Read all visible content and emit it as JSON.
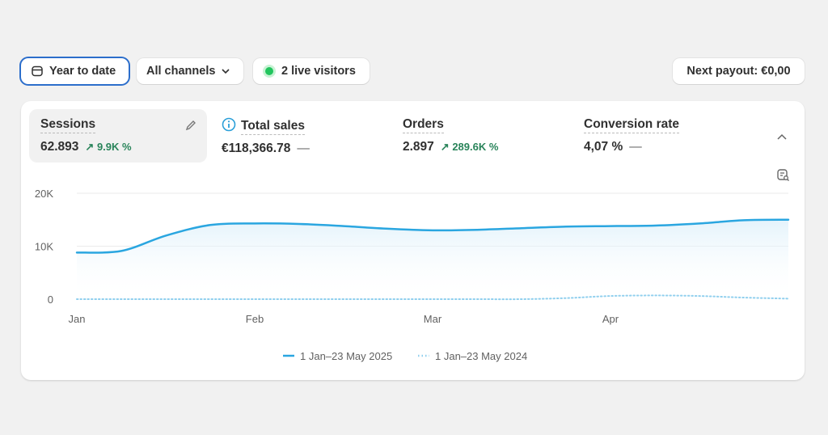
{
  "toolbar": {
    "date_range": "Year to date",
    "channels": "All channels",
    "live_visitors": "2 live visitors",
    "payout": "Next payout: €0,00",
    "live_color": "#22c55e"
  },
  "metrics": [
    {
      "label": "Sessions",
      "value": "62.893",
      "delta": "9.9K %",
      "icons": [
        "pencil-icon",
        "arrow-up-right-icon"
      ]
    },
    {
      "label": "Total sales",
      "value": "€118,366.78",
      "delta": "—",
      "icons": [
        "info-icon"
      ]
    },
    {
      "label": "Orders",
      "value": "2.897",
      "delta": "289.6K %",
      "icons": [
        "arrow-up-right-icon"
      ]
    },
    {
      "label": "Conversion rate",
      "value": "4,07 %",
      "delta": "—"
    }
  ],
  "chart_data": {
    "type": "line",
    "categories": [
      "Jan",
      "",
      "",
      "",
      "Feb",
      "",
      "",
      "",
      "Mar",
      "",
      "",
      "",
      "Apr",
      "",
      "",
      "",
      ""
    ],
    "ylim": [
      0,
      20000
    ],
    "yticks": [
      "0",
      "10K",
      "20K"
    ],
    "xticks": [
      "Jan",
      "Feb",
      "Mar",
      "Apr"
    ],
    "grid": true,
    "legend_placement": "bottom",
    "series": [
      {
        "name": "1 Jan–23 May 2025",
        "color": "#2aa6e0",
        "style": "solid",
        "area": true,
        "values": [
          8800,
          9100,
          12000,
          14000,
          14300,
          14200,
          13800,
          13300,
          13000,
          13100,
          13400,
          13700,
          13800,
          13900,
          14300,
          14900,
          15000
        ]
      },
      {
        "name": "1 Jan–23 May 2024",
        "color": "#8fcfee",
        "style": "dotted",
        "values": [
          0,
          0,
          0,
          0,
          0,
          0,
          0,
          0,
          0,
          0,
          0,
          200,
          600,
          700,
          600,
          300,
          100
        ]
      }
    ]
  }
}
